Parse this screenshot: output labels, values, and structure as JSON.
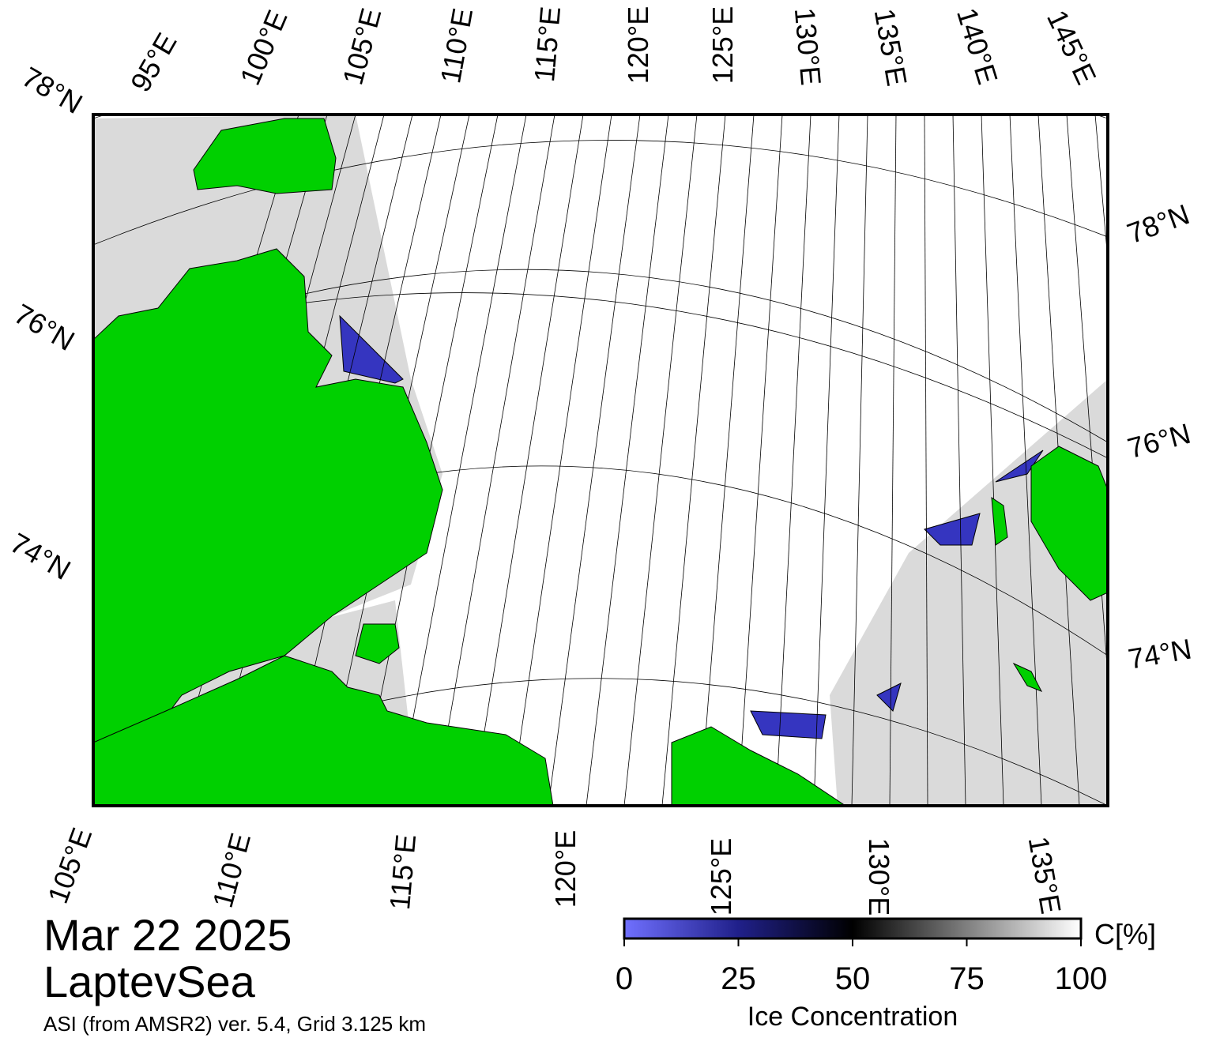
{
  "map": {
    "top_labels": [
      "78°N",
      "95°E",
      "100°E",
      "105°E",
      "110°E",
      "115°E",
      "120°E",
      "125°E",
      "130°E",
      "135°E",
      "140°E",
      "145°E"
    ],
    "left_labels": [
      "76°N",
      "74°N"
    ],
    "right_labels": [
      "78°N",
      "76°N",
      "74°N"
    ],
    "bottom_labels": [
      "105°E",
      "110°E",
      "115°E",
      "120°E",
      "125°E",
      "130°E",
      "135°E"
    ]
  },
  "footer": {
    "date": "Mar 22 2025",
    "region": "LaptevSea",
    "source": "ASI (from AMSR2) ver. 5.4,  Grid 3.125 km"
  },
  "colorbar": {
    "lim": [
      0,
      100
    ],
    "ticks": [
      0,
      25,
      50,
      75,
      100
    ],
    "unit": "C[%]",
    "label": "Ice Concentration"
  }
}
